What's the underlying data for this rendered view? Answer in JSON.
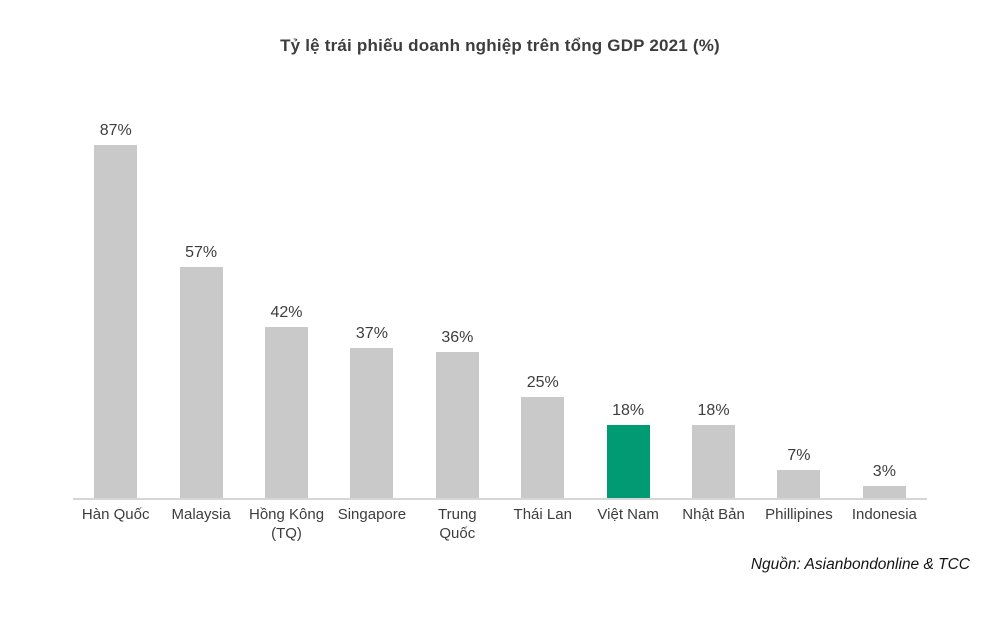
{
  "chart_data": {
    "type": "bar",
    "title": "Tỷ lệ trái phiếu doanh nghiệp trên tổng GDP 2021 (%)",
    "categories": [
      "Hàn Quốc",
      "Malaysia",
      "Hồng Kông\n(TQ)",
      "Singapore",
      "Trung\nQuốc",
      "Thái Lan",
      "Việt Nam",
      "Nhật Bản",
      "Phillipines",
      "Indonesia"
    ],
    "values": [
      87,
      57,
      42,
      37,
      36,
      25,
      18,
      18,
      7,
      3
    ],
    "value_labels": [
      "87%",
      "57%",
      "42%",
      "37%",
      "36%",
      "25%",
      "18%",
      "18%",
      "7%",
      "3%"
    ],
    "highlight_index": 6,
    "highlight_category": "Việt Nam",
    "bar_color": "#c9c9c9",
    "highlight_color": "#009b72",
    "label_color": "#3d3d3d",
    "ylim": [
      0,
      100
    ],
    "grid": false,
    "legend": false,
    "xlabel": "",
    "ylabel": "",
    "source": "Nguồn: Asianbondonline & TCC"
  }
}
